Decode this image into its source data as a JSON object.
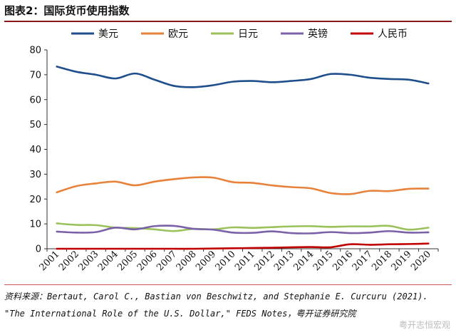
{
  "title": "图表2：国际货币使用指数",
  "source_line1": "资料来源：Bertaut, Carol C., Bastian von Beschwitz, and Stephanie E. Curcuru (2021).",
  "source_line2": "\"The International Role of the U.S. Dollar,\" FEDS Notes，粤开证券研究院",
  "watermark": "粤开志恒宏观",
  "chart_data": {
    "type": "line",
    "title": "图表2：国际货币使用指数",
    "xlabel": "",
    "ylabel": "",
    "ylim": [
      0,
      80
    ],
    "yticks": [
      0,
      10,
      20,
      30,
      40,
      50,
      60,
      70,
      80
    ],
    "legend_position": "top",
    "grid": false,
    "x": [
      "2001",
      "2002",
      "2003",
      "2004",
      "2005",
      "2006",
      "2007",
      "2008",
      "2009",
      "2010",
      "2011",
      "2012",
      "2013",
      "2014",
      "2015",
      "2016",
      "2017",
      "2018",
      "2019",
      "2020"
    ],
    "series": [
      {
        "name": "美元",
        "color": "#1f4e8c",
        "values": [
          73.3,
          71.2,
          70.0,
          68.5,
          70.5,
          68.0,
          65.5,
          65.0,
          65.8,
          67.2,
          67.5,
          67.0,
          67.5,
          68.3,
          70.3,
          70.0,
          68.8,
          68.3,
          68.0,
          66.5
        ]
      },
      {
        "name": "欧元",
        "color": "#e8823a",
        "values": [
          22.7,
          25.2,
          26.3,
          27.0,
          25.5,
          27.0,
          28.0,
          28.7,
          28.6,
          26.8,
          26.5,
          25.5,
          24.8,
          24.3,
          22.4,
          22.0,
          23.3,
          23.2,
          24.1,
          24.2
        ]
      },
      {
        "name": "日元",
        "color": "#9bc15a",
        "values": [
          10.2,
          9.6,
          9.5,
          8.5,
          8.3,
          7.8,
          7.1,
          8.0,
          7.8,
          8.6,
          8.4,
          8.7,
          9.0,
          9.1,
          8.8,
          9.0,
          9.0,
          9.2,
          7.7,
          8.5
        ]
      },
      {
        "name": "英镑",
        "color": "#7b62a8",
        "values": [
          6.9,
          6.5,
          6.7,
          8.5,
          7.8,
          9.1,
          9.2,
          8.0,
          7.7,
          6.5,
          6.4,
          7.0,
          6.3,
          6.2,
          6.7,
          6.3,
          6.5,
          7.1,
          6.5,
          6.6
        ]
      },
      {
        "name": "人民币",
        "color": "#c00000",
        "values": [
          0.0,
          0.0,
          0.0,
          0.0,
          0.0,
          0.0,
          0.0,
          0.0,
          0.1,
          0.2,
          0.3,
          0.4,
          0.6,
          0.7,
          0.6,
          1.8,
          1.6,
          1.8,
          1.9,
          2.1
        ]
      }
    ]
  }
}
